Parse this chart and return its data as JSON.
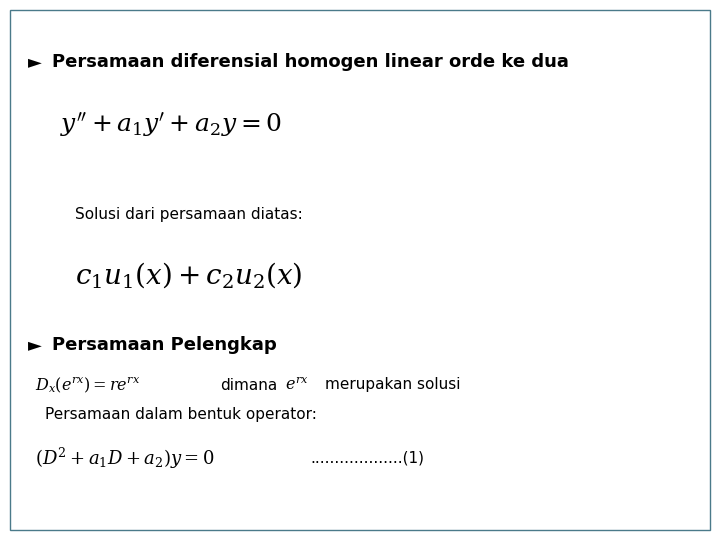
{
  "background_color": "#ffffff",
  "border_color": "#4a7a8a",
  "title1": "Persamaan diferensial homogen linear orde ke dua",
  "eq1": "$y^{\\prime\\prime} + a_1 y^{\\prime} + a_2 y = 0$",
  "solusi_text": "Solusi dari persamaan diatas:",
  "eq2": "$c_1 u_1\\left(x\\right)+ c_2 u_2\\left(x\\right)$",
  "title2": "Persamaan Pelengkap",
  "eq3": "$D_x\\left(e^{rx}\\right)= re^{rx}$",
  "dimana_text": "dimana",
  "erx": "$e^{rx}$",
  "merupakan_text": "merupakan solusi",
  "persamaan_text": "Persamaan dalam bentuk operator:",
  "eq4": "$\\left(D^2 + a_1 D + a_2\\right)y = 0$",
  "dotted_text": "...................(1)",
  "text_color": "#000000",
  "bullet": "►"
}
